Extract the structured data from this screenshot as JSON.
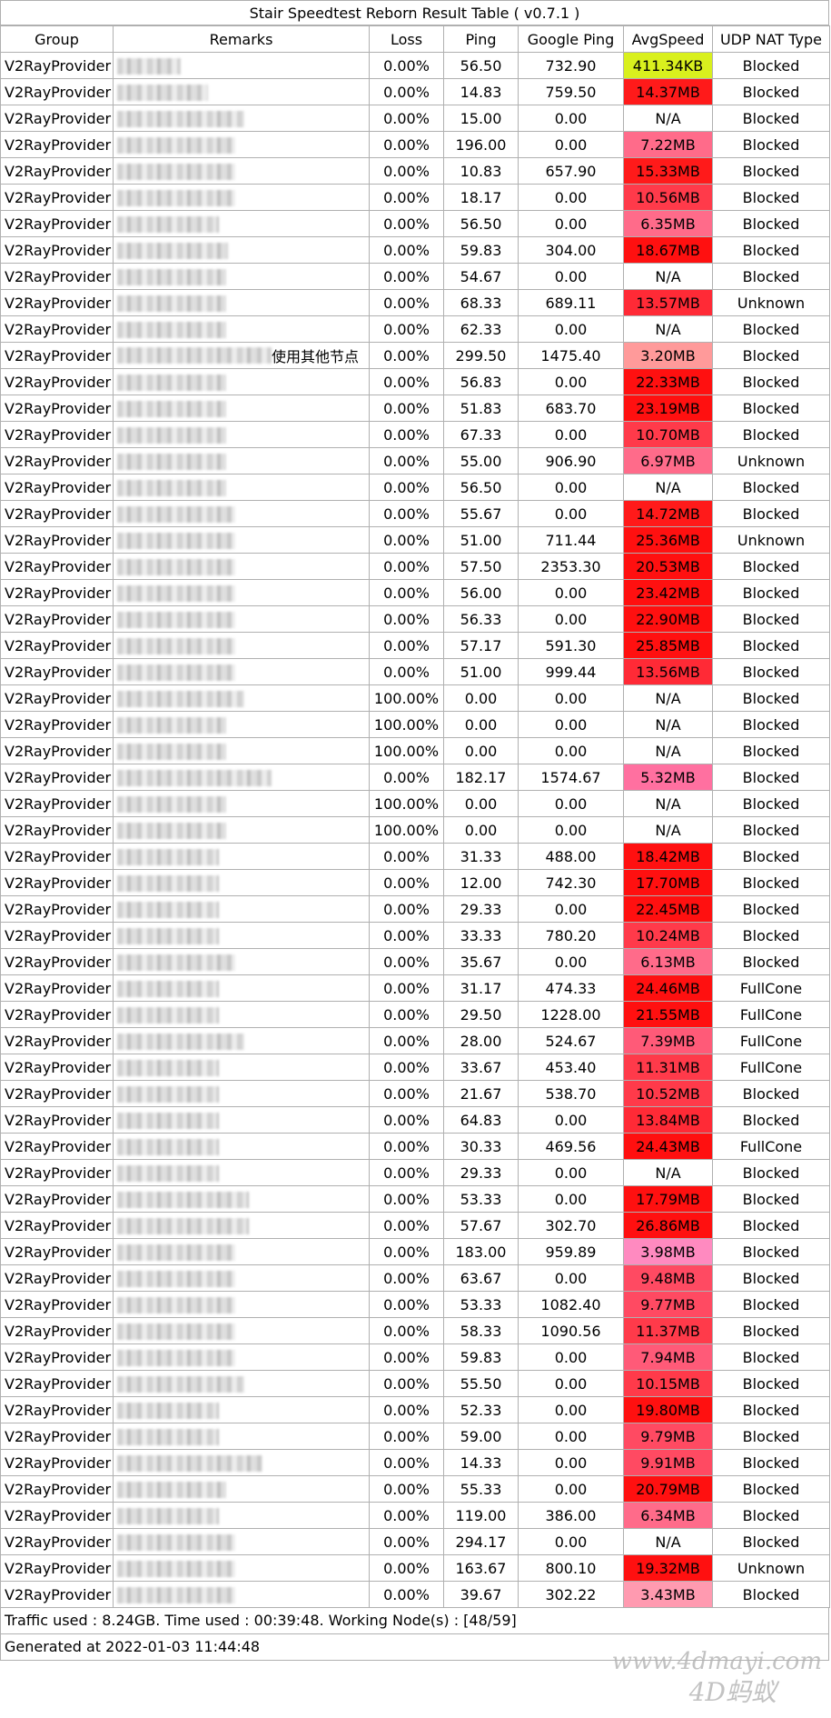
{
  "title": "Stair Speedtest Reborn Result Table ( v0.7.1 )",
  "columns": [
    "Group",
    "Remarks",
    "Loss",
    "Ping",
    "Google Ping",
    "AvgSpeed",
    "UDP NAT Type"
  ],
  "rows": [
    {
      "group": "V2RayProvider",
      "remark": "",
      "loss": "0.00%",
      "ping": "56.50",
      "gping": "732.90",
      "speed": "411.34KB",
      "nat": "Blocked",
      "color": "#d9f01e"
    },
    {
      "group": "V2RayProvider",
      "remark": "",
      "loss": "0.00%",
      "ping": "14.83",
      "gping": "759.50",
      "speed": "14.37MB",
      "nat": "Blocked",
      "color": "#ff1a1a"
    },
    {
      "group": "V2RayProvider",
      "remark": "",
      "loss": "0.00%",
      "ping": "15.00",
      "gping": "0.00",
      "speed": "N/A",
      "nat": "Blocked",
      "color": "#ffffff"
    },
    {
      "group": "V2RayProvider",
      "remark": "",
      "loss": "0.00%",
      "ping": "196.00",
      "gping": "0.00",
      "speed": "7.22MB",
      "nat": "Blocked",
      "color": "#ff6b8a"
    },
    {
      "group": "V2RayProvider",
      "remark": "",
      "loss": "0.00%",
      "ping": "10.83",
      "gping": "657.90",
      "speed": "15.33MB",
      "nat": "Blocked",
      "color": "#ff1a1a"
    },
    {
      "group": "V2RayProvider",
      "remark": "",
      "loss": "0.00%",
      "ping": "18.17",
      "gping": "0.00",
      "speed": "10.56MB",
      "nat": "Blocked",
      "color": "#ff3a4a"
    },
    {
      "group": "V2RayProvider",
      "remark": "",
      "loss": "0.00%",
      "ping": "56.50",
      "gping": "0.00",
      "speed": "6.35MB",
      "nat": "Blocked",
      "color": "#ff6b8a"
    },
    {
      "group": "V2RayProvider",
      "remark": "",
      "loss": "0.00%",
      "ping": "59.83",
      "gping": "304.00",
      "speed": "18.67MB",
      "nat": "Blocked",
      "color": "#ff1010"
    },
    {
      "group": "V2RayProvider",
      "remark": "",
      "loss": "0.00%",
      "ping": "54.67",
      "gping": "0.00",
      "speed": "N/A",
      "nat": "Blocked",
      "color": "#ffffff"
    },
    {
      "group": "V2RayProvider",
      "remark": "",
      "loss": "0.00%",
      "ping": "68.33",
      "gping": "689.11",
      "speed": "13.57MB",
      "nat": "Unknown",
      "color": "#ff2a36"
    },
    {
      "group": "V2RayProvider",
      "remark": "",
      "loss": "0.00%",
      "ping": "62.33",
      "gping": "0.00",
      "speed": "N/A",
      "nat": "Blocked",
      "color": "#ffffff"
    },
    {
      "group": "V2RayProvider",
      "remark": "使用其他节点",
      "loss": "0.00%",
      "ping": "299.50",
      "gping": "1475.40",
      "speed": "3.20MB",
      "nat": "Blocked",
      "color": "#ff9a9a"
    },
    {
      "group": "V2RayProvider",
      "remark": "",
      "loss": "0.00%",
      "ping": "56.83",
      "gping": "0.00",
      "speed": "22.33MB",
      "nat": "Blocked",
      "color": "#ff1010"
    },
    {
      "group": "V2RayProvider",
      "remark": "",
      "loss": "0.00%",
      "ping": "51.83",
      "gping": "683.70",
      "speed": "23.19MB",
      "nat": "Blocked",
      "color": "#ff1010"
    },
    {
      "group": "V2RayProvider",
      "remark": "",
      "loss": "0.00%",
      "ping": "67.33",
      "gping": "0.00",
      "speed": "10.70MB",
      "nat": "Blocked",
      "color": "#ff3a4a"
    },
    {
      "group": "V2RayProvider",
      "remark": "",
      "loss": "0.00%",
      "ping": "55.00",
      "gping": "906.90",
      "speed": "6.97MB",
      "nat": "Unknown",
      "color": "#ff6b8a"
    },
    {
      "group": "V2RayProvider",
      "remark": "",
      "loss": "0.00%",
      "ping": "56.50",
      "gping": "0.00",
      "speed": "N/A",
      "nat": "Blocked",
      "color": "#ffffff"
    },
    {
      "group": "V2RayProvider",
      "remark": "",
      "loss": "0.00%",
      "ping": "55.67",
      "gping": "0.00",
      "speed": "14.72MB",
      "nat": "Blocked",
      "color": "#ff1a1a"
    },
    {
      "group": "V2RayProvider",
      "remark": "",
      "loss": "0.00%",
      "ping": "51.00",
      "gping": "711.44",
      "speed": "25.36MB",
      "nat": "Unknown",
      "color": "#ff1010"
    },
    {
      "group": "V2RayProvider",
      "remark": "",
      "loss": "0.00%",
      "ping": "57.50",
      "gping": "2353.30",
      "speed": "20.53MB",
      "nat": "Blocked",
      "color": "#ff1010"
    },
    {
      "group": "V2RayProvider",
      "remark": "",
      "loss": "0.00%",
      "ping": "56.00",
      "gping": "0.00",
      "speed": "23.42MB",
      "nat": "Blocked",
      "color": "#ff1010"
    },
    {
      "group": "V2RayProvider",
      "remark": "",
      "loss": "0.00%",
      "ping": "56.33",
      "gping": "0.00",
      "speed": "22.90MB",
      "nat": "Blocked",
      "color": "#ff1010"
    },
    {
      "group": "V2RayProvider",
      "remark": "",
      "loss": "0.00%",
      "ping": "57.17",
      "gping": "591.30",
      "speed": "25.85MB",
      "nat": "Blocked",
      "color": "#ff1010"
    },
    {
      "group": "V2RayProvider",
      "remark": "",
      "loss": "0.00%",
      "ping": "51.00",
      "gping": "999.44",
      "speed": "13.56MB",
      "nat": "Blocked",
      "color": "#ff2a36"
    },
    {
      "group": "V2RayProvider",
      "remark": "",
      "loss": "100.00%",
      "ping": "0.00",
      "gping": "0.00",
      "speed": "N/A",
      "nat": "Blocked",
      "color": "#ffffff"
    },
    {
      "group": "V2RayProvider",
      "remark": "",
      "loss": "100.00%",
      "ping": "0.00",
      "gping": "0.00",
      "speed": "N/A",
      "nat": "Blocked",
      "color": "#ffffff"
    },
    {
      "group": "V2RayProvider",
      "remark": "",
      "loss": "100.00%",
      "ping": "0.00",
      "gping": "0.00",
      "speed": "N/A",
      "nat": "Blocked",
      "color": "#ffffff"
    },
    {
      "group": "V2RayProvider",
      "remark": "",
      "loss": "0.00%",
      "ping": "182.17",
      "gping": "1574.67",
      "speed": "5.32MB",
      "nat": "Blocked",
      "color": "#ff70a0"
    },
    {
      "group": "V2RayProvider",
      "remark": "",
      "loss": "100.00%",
      "ping": "0.00",
      "gping": "0.00",
      "speed": "N/A",
      "nat": "Blocked",
      "color": "#ffffff"
    },
    {
      "group": "V2RayProvider",
      "remark": "",
      "loss": "100.00%",
      "ping": "0.00",
      "gping": "0.00",
      "speed": "N/A",
      "nat": "Blocked",
      "color": "#ffffff"
    },
    {
      "group": "V2RayProvider",
      "remark": "",
      "loss": "0.00%",
      "ping": "31.33",
      "gping": "488.00",
      "speed": "18.42MB",
      "nat": "Blocked",
      "color": "#ff1010"
    },
    {
      "group": "V2RayProvider",
      "remark": "",
      "loss": "0.00%",
      "ping": "12.00",
      "gping": "742.30",
      "speed": "17.70MB",
      "nat": "Blocked",
      "color": "#ff1010"
    },
    {
      "group": "V2RayProvider",
      "remark": "",
      "loss": "0.00%",
      "ping": "29.33",
      "gping": "0.00",
      "speed": "22.45MB",
      "nat": "Blocked",
      "color": "#ff1010"
    },
    {
      "group": "V2RayProvider",
      "remark": "",
      "loss": "0.00%",
      "ping": "33.33",
      "gping": "780.20",
      "speed": "10.24MB",
      "nat": "Blocked",
      "color": "#ff3a4a"
    },
    {
      "group": "V2RayProvider",
      "remark": "",
      "loss": "0.00%",
      "ping": "35.67",
      "gping": "0.00",
      "speed": "6.13MB",
      "nat": "Blocked",
      "color": "#ff6b8a"
    },
    {
      "group": "V2RayProvider",
      "remark": "",
      "loss": "0.00%",
      "ping": "31.17",
      "gping": "474.33",
      "speed": "24.46MB",
      "nat": "FullCone",
      "color": "#ff1010"
    },
    {
      "group": "V2RayProvider",
      "remark": "",
      "loss": "0.00%",
      "ping": "29.50",
      "gping": "1228.00",
      "speed": "21.55MB",
      "nat": "FullCone",
      "color": "#ff1010"
    },
    {
      "group": "V2RayProvider",
      "remark": "",
      "loss": "0.00%",
      "ping": "28.00",
      "gping": "524.67",
      "speed": "7.39MB",
      "nat": "FullCone",
      "color": "#ff5a78"
    },
    {
      "group": "V2RayProvider",
      "remark": "",
      "loss": "0.00%",
      "ping": "33.67",
      "gping": "453.40",
      "speed": "11.31MB",
      "nat": "FullCone",
      "color": "#ff3a4a"
    },
    {
      "group": "V2RayProvider",
      "remark": "",
      "loss": "0.00%",
      "ping": "21.67",
      "gping": "538.70",
      "speed": "10.52MB",
      "nat": "Blocked",
      "color": "#ff3a4a"
    },
    {
      "group": "V2RayProvider",
      "remark": "",
      "loss": "0.00%",
      "ping": "64.83",
      "gping": "0.00",
      "speed": "13.84MB",
      "nat": "Blocked",
      "color": "#ff2a36"
    },
    {
      "group": "V2RayProvider",
      "remark": "",
      "loss": "0.00%",
      "ping": "30.33",
      "gping": "469.56",
      "speed": "24.43MB",
      "nat": "FullCone",
      "color": "#ff1010"
    },
    {
      "group": "V2RayProvider",
      "remark": "",
      "loss": "0.00%",
      "ping": "29.33",
      "gping": "0.00",
      "speed": "N/A",
      "nat": "Blocked",
      "color": "#ffffff"
    },
    {
      "group": "V2RayProvider",
      "remark": "",
      "loss": "0.00%",
      "ping": "53.33",
      "gping": "0.00",
      "speed": "17.79MB",
      "nat": "Blocked",
      "color": "#ff1010"
    },
    {
      "group": "V2RayProvider",
      "remark": "",
      "loss": "0.00%",
      "ping": "57.67",
      "gping": "302.70",
      "speed": "26.86MB",
      "nat": "Blocked",
      "color": "#ff1010"
    },
    {
      "group": "V2RayProvider",
      "remark": "",
      "loss": "0.00%",
      "ping": "183.00",
      "gping": "959.89",
      "speed": "3.98MB",
      "nat": "Blocked",
      "color": "#ff8ac0"
    },
    {
      "group": "V2RayProvider",
      "remark": "",
      "loss": "0.00%",
      "ping": "63.67",
      "gping": "0.00",
      "speed": "9.48MB",
      "nat": "Blocked",
      "color": "#ff4a62"
    },
    {
      "group": "V2RayProvider",
      "remark": "",
      "loss": "0.00%",
      "ping": "53.33",
      "gping": "1082.40",
      "speed": "9.77MB",
      "nat": "Blocked",
      "color": "#ff4a62"
    },
    {
      "group": "V2RayProvider",
      "remark": "",
      "loss": "0.00%",
      "ping": "58.33",
      "gping": "1090.56",
      "speed": "11.37MB",
      "nat": "Blocked",
      "color": "#ff3a4a"
    },
    {
      "group": "V2RayProvider",
      "remark": "",
      "loss": "0.00%",
      "ping": "59.83",
      "gping": "0.00",
      "speed": "7.94MB",
      "nat": "Blocked",
      "color": "#ff5a78"
    },
    {
      "group": "V2RayProvider",
      "remark": "",
      "loss": "0.00%",
      "ping": "55.50",
      "gping": "0.00",
      "speed": "10.15MB",
      "nat": "Blocked",
      "color": "#ff3a4a"
    },
    {
      "group": "V2RayProvider",
      "remark": "",
      "loss": "0.00%",
      "ping": "52.33",
      "gping": "0.00",
      "speed": "19.80MB",
      "nat": "Blocked",
      "color": "#ff1010"
    },
    {
      "group": "V2RayProvider",
      "remark": "",
      "loss": "0.00%",
      "ping": "59.00",
      "gping": "0.00",
      "speed": "9.79MB",
      "nat": "Blocked",
      "color": "#ff4a62"
    },
    {
      "group": "V2RayProvider",
      "remark": "",
      "loss": "0.00%",
      "ping": "14.33",
      "gping": "0.00",
      "speed": "9.91MB",
      "nat": "Blocked",
      "color": "#ff4a62"
    },
    {
      "group": "V2RayProvider",
      "remark": "",
      "loss": "0.00%",
      "ping": "55.33",
      "gping": "0.00",
      "speed": "20.79MB",
      "nat": "Blocked",
      "color": "#ff1010"
    },
    {
      "group": "V2RayProvider",
      "remark": "",
      "loss": "0.00%",
      "ping": "119.00",
      "gping": "386.00",
      "speed": "6.34MB",
      "nat": "Blocked",
      "color": "#ff6b8a"
    },
    {
      "group": "V2RayProvider",
      "remark": "",
      "loss": "0.00%",
      "ping": "294.17",
      "gping": "0.00",
      "speed": "N/A",
      "nat": "Blocked",
      "color": "#ffffff"
    },
    {
      "group": "V2RayProvider",
      "remark": "",
      "loss": "0.00%",
      "ping": "163.67",
      "gping": "800.10",
      "speed": "19.32MB",
      "nat": "Unknown",
      "color": "#ff1010"
    },
    {
      "group": "V2RayProvider",
      "remark": "",
      "loss": "0.00%",
      "ping": "39.67",
      "gping": "302.22",
      "speed": "3.43MB",
      "nat": "Blocked",
      "color": "#ff9ab0"
    }
  ],
  "footer": {
    "summary": "Traffic used : 8.24GB. Time used : 00:39:48. Working Node(s) : [48/59]",
    "generated": "Generated at 2022-01-03 11:44:48"
  },
  "watermark": {
    "line1": "www.4dmayi.com",
    "line2": "4D蚂蚁"
  }
}
